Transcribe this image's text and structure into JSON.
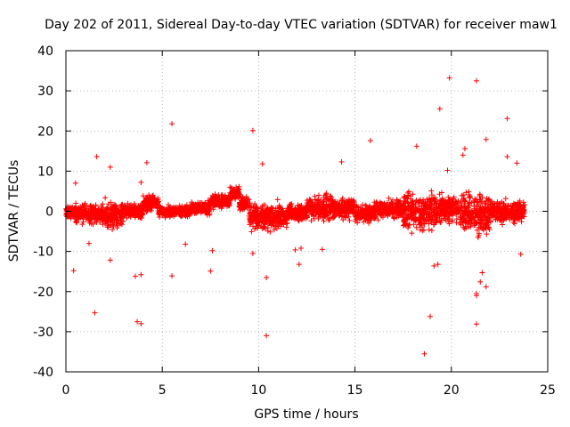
{
  "chart_data": {
    "type": "scatter",
    "title": "Day 202 of 2011, Sidereal Day-to-day VTEC variation (SDTVAR) for receiver maw1",
    "xlabel": "GPS time / hours",
    "ylabel": "SDTVAR / TECUs",
    "xlim": [
      0,
      25
    ],
    "ylim": [
      -40,
      40
    ],
    "xticks": [
      0,
      5,
      10,
      15,
      20,
      25
    ],
    "yticks": [
      -40,
      -30,
      -20,
      -10,
      0,
      10,
      20,
      30,
      40
    ],
    "grid": true,
    "marker": "+",
    "series_color": "#ff0000",
    "outliers": [
      {
        "x": 19.9,
        "y": 33.2
      },
      {
        "x": 21.3,
        "y": 32.5
      },
      {
        "x": 19.4,
        "y": 25.5
      },
      {
        "x": 22.9,
        "y": 23.1
      },
      {
        "x": 5.5,
        "y": 21.8
      },
      {
        "x": 9.7,
        "y": 20.1
      },
      {
        "x": 21.8,
        "y": 17.9
      },
      {
        "x": 15.8,
        "y": 17.6
      },
      {
        "x": 18.2,
        "y": 16.2
      },
      {
        "x": 20.7,
        "y": 15.6
      },
      {
        "x": 1.6,
        "y": 13.6
      },
      {
        "x": 20.6,
        "y": 14.0
      },
      {
        "x": 22.9,
        "y": 13.6
      },
      {
        "x": 14.3,
        "y": 12.3
      },
      {
        "x": 4.2,
        "y": 12.1
      },
      {
        "x": 10.2,
        "y": 11.8
      },
      {
        "x": 23.4,
        "y": 12.0
      },
      {
        "x": 2.3,
        "y": 11.0
      },
      {
        "x": 19.8,
        "y": 10.2
      },
      {
        "x": 0.5,
        "y": 7.0
      },
      {
        "x": 3.9,
        "y": 7.2
      },
      {
        "x": 0.4,
        "y": -14.8
      },
      {
        "x": 2.3,
        "y": -12.2
      },
      {
        "x": 3.6,
        "y": -16.2
      },
      {
        "x": 3.9,
        "y": -15.8
      },
      {
        "x": 5.5,
        "y": -16.1
      },
      {
        "x": 7.5,
        "y": -14.9
      },
      {
        "x": 10.4,
        "y": -16.5
      },
      {
        "x": 12.1,
        "y": -13.2
      },
      {
        "x": 19.1,
        "y": -13.6
      },
      {
        "x": 19.3,
        "y": -13.2
      },
      {
        "x": 21.5,
        "y": -17.6
      },
      {
        "x": 21.8,
        "y": -18.8
      },
      {
        "x": 21.3,
        "y": -20.5
      },
      {
        "x": 21.3,
        "y": -21.0
      },
      {
        "x": 21.6,
        "y": -15.3
      },
      {
        "x": 1.5,
        "y": -25.3
      },
      {
        "x": 3.7,
        "y": -27.5
      },
      {
        "x": 3.9,
        "y": -28.0
      },
      {
        "x": 18.9,
        "y": -26.2
      },
      {
        "x": 21.3,
        "y": -28.1
      },
      {
        "x": 10.4,
        "y": -31.0
      },
      {
        "x": 18.6,
        "y": -35.5
      },
      {
        "x": 23.6,
        "y": -10.7
      },
      {
        "x": 7.6,
        "y": -9.8
      },
      {
        "x": 9.7,
        "y": -10.5
      },
      {
        "x": 11.9,
        "y": -9.6
      },
      {
        "x": 12.2,
        "y": -9.2
      },
      {
        "x": 13.3,
        "y": -9.5
      },
      {
        "x": 1.2,
        "y": -8.0
      },
      {
        "x": 6.2,
        "y": -8.2
      }
    ],
    "bands": [
      {
        "x": [
          0.0,
          0.5
        ],
        "center": -0.3,
        "spread": 2.2
      },
      {
        "x": [
          0.5,
          2.0
        ],
        "center": -0.6,
        "spread": 3.5
      },
      {
        "x": [
          2.0,
          3.0
        ],
        "center": -1.0,
        "spread": 5.0
      },
      {
        "x": [
          3.0,
          4.0
        ],
        "center": 0.0,
        "spread": 2.5
      },
      {
        "x": [
          4.0,
          4.8
        ],
        "center": 2.0,
        "spread": 3.2
      },
      {
        "x": [
          4.8,
          6.5
        ],
        "center": 0.0,
        "spread": 2.2
      },
      {
        "x": [
          6.5,
          7.5
        ],
        "center": 0.8,
        "spread": 2.5
      },
      {
        "x": [
          7.5,
          8.5
        ],
        "center": 2.5,
        "spread": 2.5
      },
      {
        "x": [
          8.5,
          9.0
        ],
        "center": 4.5,
        "spread": 2.5
      },
      {
        "x": [
          9.0,
          9.5
        ],
        "center": 2.0,
        "spread": 2.5
      },
      {
        "x": [
          9.5,
          11.5
        ],
        "center": -1.5,
        "spread": 5.0
      },
      {
        "x": [
          11.5,
          12.5
        ],
        "center": -0.3,
        "spread": 3.5
      },
      {
        "x": [
          12.5,
          15.0
        ],
        "center": 0.8,
        "spread": 4.5
      },
      {
        "x": [
          15.0,
          16.0
        ],
        "center": -0.5,
        "spread": 3.5
      },
      {
        "x": [
          16.0,
          17.5
        ],
        "center": 0.5,
        "spread": 3.5
      },
      {
        "x": [
          17.5,
          19.5
        ],
        "center": 0.0,
        "spread": 7.5
      },
      {
        "x": [
          19.5,
          20.5
        ],
        "center": 0.5,
        "spread": 5.0
      },
      {
        "x": [
          20.5,
          22.0
        ],
        "center": -0.5,
        "spread": 8.0
      },
      {
        "x": [
          22.0,
          23.8
        ],
        "center": 0.0,
        "spread": 4.0
      }
    ]
  }
}
